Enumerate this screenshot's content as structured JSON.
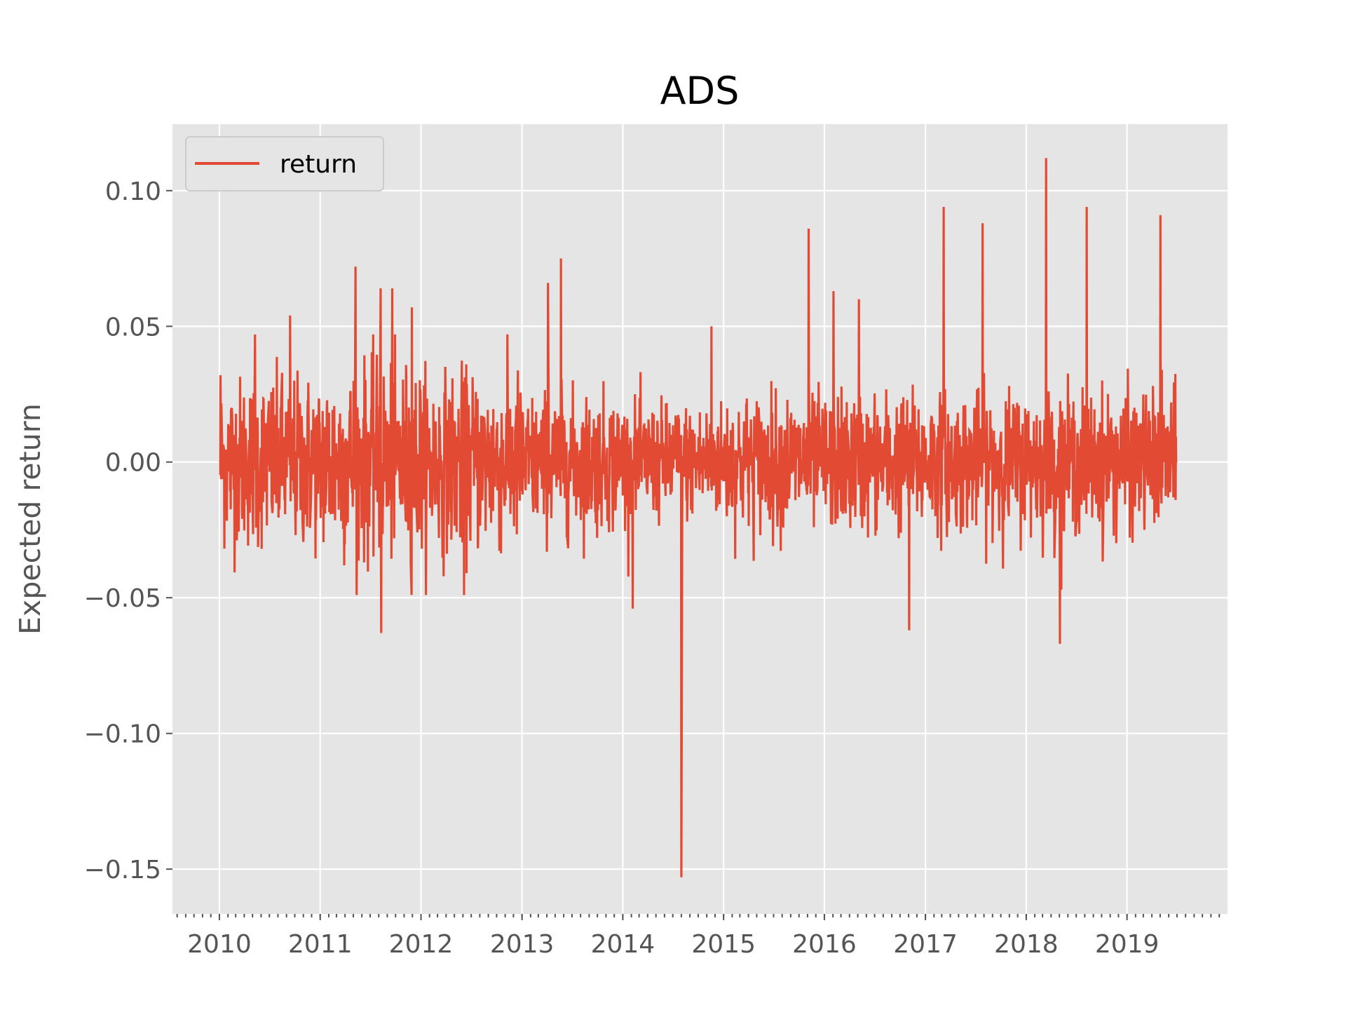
{
  "chart_data": {
    "type": "line",
    "title": "ADS",
    "xlabel": "",
    "ylabel": "Expected return",
    "x_ticks": [
      "2010",
      "2011",
      "2012",
      "2013",
      "2014",
      "2015",
      "2016",
      "2017",
      "2018",
      "2019"
    ],
    "y_ticks": [
      "0.10",
      "0.05",
      "0.00",
      "−0.05",
      "−0.10",
      "−0.15"
    ],
    "y_tick_values": [
      0.1,
      0.05,
      0.0,
      -0.05,
      -0.1,
      -0.15
    ],
    "xlim": [
      "2009-07-15",
      "2019-12-31"
    ],
    "ylim": [
      -0.1665,
      0.1245
    ],
    "grid": true,
    "legend": {
      "position": "top-left",
      "entries": [
        "return"
      ]
    },
    "colors": {
      "series": "#e24a33",
      "plot_background": "#e5e5e5",
      "grid": "#ffffff"
    },
    "series": [
      {
        "name": "return",
        "x_start": "2010-01-04",
        "x_end": "2019-06-28",
        "frequency": "daily (trading days)",
        "values_range": [
          -0.153,
          0.112
        ],
        "notable_points": [
          {
            "x": "2010-01-05",
            "y": 0.032
          },
          {
            "x": "2010-05-10",
            "y": 0.047
          },
          {
            "x": "2010-09-14",
            "y": 0.054
          },
          {
            "x": "2011-05-09",
            "y": 0.072
          },
          {
            "x": "2011-08-08",
            "y": 0.064
          },
          {
            "x": "2011-08-10",
            "y": -0.063
          },
          {
            "x": "2011-09-19",
            "y": 0.064
          },
          {
            "x": "2011-11-29",
            "y": 0.057
          },
          {
            "x": "2012-06-05",
            "y": -0.049
          },
          {
            "x": "2013-04-05",
            "y": 0.066
          },
          {
            "x": "2013-05-22",
            "y": 0.075
          },
          {
            "x": "2014-02-06",
            "y": -0.054
          },
          {
            "x": "2014-08-01",
            "y": -0.153
          },
          {
            "x": "2014-11-18",
            "y": 0.05
          },
          {
            "x": "2015-11-05",
            "y": 0.086
          },
          {
            "x": "2016-02-03",
            "y": 0.063
          },
          {
            "x": "2016-05-05",
            "y": 0.06
          },
          {
            "x": "2016-11-03",
            "y": -0.062
          },
          {
            "x": "2017-03-08",
            "y": 0.094
          },
          {
            "x": "2017-07-27",
            "y": 0.088
          },
          {
            "x": "2018-03-14",
            "y": 0.112
          },
          {
            "x": "2018-05-03",
            "y": -0.067
          },
          {
            "x": "2018-08-08",
            "y": 0.094
          },
          {
            "x": "2019-05-02",
            "y": 0.091
          }
        ]
      }
    ]
  }
}
